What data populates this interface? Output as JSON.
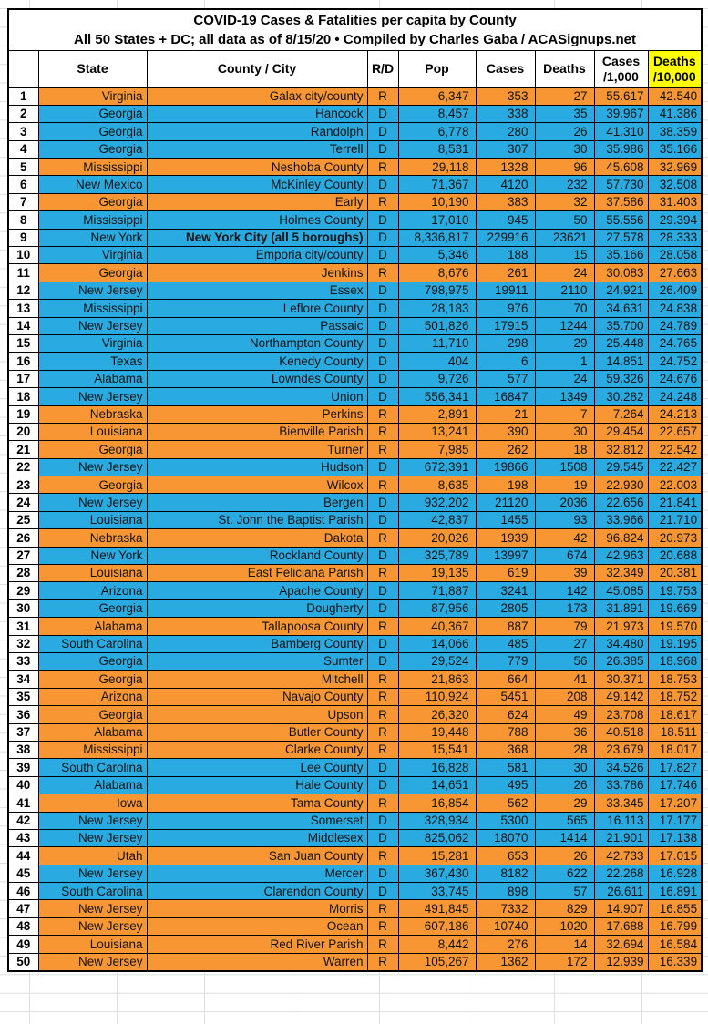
{
  "chart_data": {
    "type": "table",
    "title": "COVID-19 Cases & Fatalities per capita by County",
    "subtitle": "All 50 States + DC; all data as of 8/15/20 • Compiled by Charles Gaba / ACASignups.net",
    "columns": {
      "rank": "",
      "state": "State",
      "county": "County / City",
      "party": "R/D",
      "pop": "Pop",
      "cases": "Cases",
      "deaths": "Deaths",
      "cases_rate": "Cases\n/1,000",
      "deaths_rate": "Deaths\n/10,000"
    },
    "colors": {
      "republican_row": "#f79632",
      "democrat_row": "#29abe2",
      "deaths_header_bg": "#ffff00"
    },
    "rows": [
      {
        "rank": 1,
        "state": "Virginia",
        "county": "Galax city/county",
        "party": "R",
        "pop": "6,347",
        "cases": "353",
        "deaths": "27",
        "cases_per_1000": "55.617",
        "deaths_per_10000": "42.540",
        "bold_county": false
      },
      {
        "rank": 2,
        "state": "Georgia",
        "county": "Hancock",
        "party": "D",
        "pop": "8,457",
        "cases": "338",
        "deaths": "35",
        "cases_per_1000": "39.967",
        "deaths_per_10000": "41.386",
        "bold_county": false
      },
      {
        "rank": 3,
        "state": "Georgia",
        "county": "Randolph",
        "party": "D",
        "pop": "6,778",
        "cases": "280",
        "deaths": "26",
        "cases_per_1000": "41.310",
        "deaths_per_10000": "38.359",
        "bold_county": false
      },
      {
        "rank": 4,
        "state": "Georgia",
        "county": "Terrell",
        "party": "D",
        "pop": "8,531",
        "cases": "307",
        "deaths": "30",
        "cases_per_1000": "35.986",
        "deaths_per_10000": "35.166",
        "bold_county": false
      },
      {
        "rank": 5,
        "state": "Mississippi",
        "county": "Neshoba County",
        "party": "R",
        "pop": "29,118",
        "cases": "1328",
        "deaths": "96",
        "cases_per_1000": "45.608",
        "deaths_per_10000": "32.969",
        "bold_county": false
      },
      {
        "rank": 6,
        "state": "New Mexico",
        "county": "McKinley County",
        "party": "D",
        "pop": "71,367",
        "cases": "4120",
        "deaths": "232",
        "cases_per_1000": "57.730",
        "deaths_per_10000": "32.508",
        "bold_county": false
      },
      {
        "rank": 7,
        "state": "Georgia",
        "county": "Early",
        "party": "R",
        "pop": "10,190",
        "cases": "383",
        "deaths": "32",
        "cases_per_1000": "37.586",
        "deaths_per_10000": "31.403",
        "bold_county": false
      },
      {
        "rank": 8,
        "state": "Mississippi",
        "county": "Holmes County",
        "party": "D",
        "pop": "17,010",
        "cases": "945",
        "deaths": "50",
        "cases_per_1000": "55.556",
        "deaths_per_10000": "29.394",
        "bold_county": false
      },
      {
        "rank": 9,
        "state": "New York",
        "county": "New York City (all 5 boroughs)",
        "party": "D",
        "pop": "8,336,817",
        "cases": "229916",
        "deaths": "23621",
        "cases_per_1000": "27.578",
        "deaths_per_10000": "28.333",
        "bold_county": true
      },
      {
        "rank": 10,
        "state": "Virginia",
        "county": "Emporia city/county",
        "party": "D",
        "pop": "5,346",
        "cases": "188",
        "deaths": "15",
        "cases_per_1000": "35.166",
        "deaths_per_10000": "28.058",
        "bold_county": false
      },
      {
        "rank": 11,
        "state": "Georgia",
        "county": "Jenkins",
        "party": "R",
        "pop": "8,676",
        "cases": "261",
        "deaths": "24",
        "cases_per_1000": "30.083",
        "deaths_per_10000": "27.663",
        "bold_county": false
      },
      {
        "rank": 12,
        "state": "New Jersey",
        "county": "Essex",
        "party": "D",
        "pop": "798,975",
        "cases": "19911",
        "deaths": "2110",
        "cases_per_1000": "24.921",
        "deaths_per_10000": "26.409",
        "bold_county": false
      },
      {
        "rank": 13,
        "state": "Mississippi",
        "county": "Leflore County",
        "party": "D",
        "pop": "28,183",
        "cases": "976",
        "deaths": "70",
        "cases_per_1000": "34.631",
        "deaths_per_10000": "24.838",
        "bold_county": false
      },
      {
        "rank": 14,
        "state": "New Jersey",
        "county": "Passaic",
        "party": "D",
        "pop": "501,826",
        "cases": "17915",
        "deaths": "1244",
        "cases_per_1000": "35.700",
        "deaths_per_10000": "24.789",
        "bold_county": false
      },
      {
        "rank": 15,
        "state": "Virginia",
        "county": "Northampton County",
        "party": "D",
        "pop": "11,710",
        "cases": "298",
        "deaths": "29",
        "cases_per_1000": "25.448",
        "deaths_per_10000": "24.765",
        "bold_county": false
      },
      {
        "rank": 16,
        "state": "Texas",
        "county": "Kenedy County",
        "party": "D",
        "pop": "404",
        "cases": "6",
        "deaths": "1",
        "cases_per_1000": "14.851",
        "deaths_per_10000": "24.752",
        "bold_county": false
      },
      {
        "rank": 17,
        "state": "Alabama",
        "county": "Lowndes County",
        "party": "D",
        "pop": "9,726",
        "cases": "577",
        "deaths": "24",
        "cases_per_1000": "59.326",
        "deaths_per_10000": "24.676",
        "bold_county": false
      },
      {
        "rank": 18,
        "state": "New Jersey",
        "county": "Union",
        "party": "D",
        "pop": "556,341",
        "cases": "16847",
        "deaths": "1349",
        "cases_per_1000": "30.282",
        "deaths_per_10000": "24.248",
        "bold_county": false
      },
      {
        "rank": 19,
        "state": "Nebraska",
        "county": "Perkins",
        "party": "R",
        "pop": "2,891",
        "cases": "21",
        "deaths": "7",
        "cases_per_1000": "7.264",
        "deaths_per_10000": "24.213",
        "bold_county": false
      },
      {
        "rank": 20,
        "state": "Louisiana",
        "county": "Bienville Parish",
        "party": "R",
        "pop": "13,241",
        "cases": "390",
        "deaths": "30",
        "cases_per_1000": "29.454",
        "deaths_per_10000": "22.657",
        "bold_county": false
      },
      {
        "rank": 21,
        "state": "Georgia",
        "county": "Turner",
        "party": "R",
        "pop": "7,985",
        "cases": "262",
        "deaths": "18",
        "cases_per_1000": "32.812",
        "deaths_per_10000": "22.542",
        "bold_county": false
      },
      {
        "rank": 22,
        "state": "New Jersey",
        "county": "Hudson",
        "party": "D",
        "pop": "672,391",
        "cases": "19866",
        "deaths": "1508",
        "cases_per_1000": "29.545",
        "deaths_per_10000": "22.427",
        "bold_county": false
      },
      {
        "rank": 23,
        "state": "Georgia",
        "county": "Wilcox",
        "party": "R",
        "pop": "8,635",
        "cases": "198",
        "deaths": "19",
        "cases_per_1000": "22.930",
        "deaths_per_10000": "22.003",
        "bold_county": false
      },
      {
        "rank": 24,
        "state": "New Jersey",
        "county": "Bergen",
        "party": "D",
        "pop": "932,202",
        "cases": "21120",
        "deaths": "2036",
        "cases_per_1000": "22.656",
        "deaths_per_10000": "21.841",
        "bold_county": false
      },
      {
        "rank": 25,
        "state": "Louisiana",
        "county": "St. John the Baptist Parish",
        "party": "D",
        "pop": "42,837",
        "cases": "1455",
        "deaths": "93",
        "cases_per_1000": "33.966",
        "deaths_per_10000": "21.710",
        "bold_county": false
      },
      {
        "rank": 26,
        "state": "Nebraska",
        "county": "Dakota",
        "party": "R",
        "pop": "20,026",
        "cases": "1939",
        "deaths": "42",
        "cases_per_1000": "96.824",
        "deaths_per_10000": "20.973",
        "bold_county": false
      },
      {
        "rank": 27,
        "state": "New York",
        "county": "Rockland County",
        "party": "D",
        "pop": "325,789",
        "cases": "13997",
        "deaths": "674",
        "cases_per_1000": "42.963",
        "deaths_per_10000": "20.688",
        "bold_county": false
      },
      {
        "rank": 28,
        "state": "Louisiana",
        "county": "East Feliciana Parish",
        "party": "R",
        "pop": "19,135",
        "cases": "619",
        "deaths": "39",
        "cases_per_1000": "32.349",
        "deaths_per_10000": "20.381",
        "bold_county": false
      },
      {
        "rank": 29,
        "state": "Arizona",
        "county": "Apache County",
        "party": "D",
        "pop": "71,887",
        "cases": "3241",
        "deaths": "142",
        "cases_per_1000": "45.085",
        "deaths_per_10000": "19.753",
        "bold_county": false
      },
      {
        "rank": 30,
        "state": "Georgia",
        "county": "Dougherty",
        "party": "D",
        "pop": "87,956",
        "cases": "2805",
        "deaths": "173",
        "cases_per_1000": "31.891",
        "deaths_per_10000": "19.669",
        "bold_county": false
      },
      {
        "rank": 31,
        "state": "Alabama",
        "county": "Tallapoosa County",
        "party": "R",
        "pop": "40,367",
        "cases": "887",
        "deaths": "79",
        "cases_per_1000": "21.973",
        "deaths_per_10000": "19.570",
        "bold_county": false
      },
      {
        "rank": 32,
        "state": "South Carolina",
        "county": "Bamberg County",
        "party": "D",
        "pop": "14,066",
        "cases": "485",
        "deaths": "27",
        "cases_per_1000": "34.480",
        "deaths_per_10000": "19.195",
        "bold_county": false
      },
      {
        "rank": 33,
        "state": "Georgia",
        "county": "Sumter",
        "party": "D",
        "pop": "29,524",
        "cases": "779",
        "deaths": "56",
        "cases_per_1000": "26.385",
        "deaths_per_10000": "18.968",
        "bold_county": false
      },
      {
        "rank": 34,
        "state": "Georgia",
        "county": "Mitchell",
        "party": "R",
        "pop": "21,863",
        "cases": "664",
        "deaths": "41",
        "cases_per_1000": "30.371",
        "deaths_per_10000": "18.753",
        "bold_county": false
      },
      {
        "rank": 35,
        "state": "Arizona",
        "county": "Navajo County",
        "party": "R",
        "pop": "110,924",
        "cases": "5451",
        "deaths": "208",
        "cases_per_1000": "49.142",
        "deaths_per_10000": "18.752",
        "bold_county": false
      },
      {
        "rank": 36,
        "state": "Georgia",
        "county": "Upson",
        "party": "R",
        "pop": "26,320",
        "cases": "624",
        "deaths": "49",
        "cases_per_1000": "23.708",
        "deaths_per_10000": "18.617",
        "bold_county": false
      },
      {
        "rank": 37,
        "state": "Alabama",
        "county": "Butler County",
        "party": "R",
        "pop": "19,448",
        "cases": "788",
        "deaths": "36",
        "cases_per_1000": "40.518",
        "deaths_per_10000": "18.511",
        "bold_county": false
      },
      {
        "rank": 38,
        "state": "Mississippi",
        "county": "Clarke County",
        "party": "R",
        "pop": "15,541",
        "cases": "368",
        "deaths": "28",
        "cases_per_1000": "23.679",
        "deaths_per_10000": "18.017",
        "bold_county": false
      },
      {
        "rank": 39,
        "state": "South Carolina",
        "county": "Lee County",
        "party": "D",
        "pop": "16,828",
        "cases": "581",
        "deaths": "30",
        "cases_per_1000": "34.526",
        "deaths_per_10000": "17.827",
        "bold_county": false
      },
      {
        "rank": 40,
        "state": "Alabama",
        "county": "Hale County",
        "party": "D",
        "pop": "14,651",
        "cases": "495",
        "deaths": "26",
        "cases_per_1000": "33.786",
        "deaths_per_10000": "17.746",
        "bold_county": false
      },
      {
        "rank": 41,
        "state": "Iowa",
        "county": "Tama County",
        "party": "R",
        "pop": "16,854",
        "cases": "562",
        "deaths": "29",
        "cases_per_1000": "33.345",
        "deaths_per_10000": "17.207",
        "bold_county": false
      },
      {
        "rank": 42,
        "state": "New Jersey",
        "county": "Somerset",
        "party": "D",
        "pop": "328,934",
        "cases": "5300",
        "deaths": "565",
        "cases_per_1000": "16.113",
        "deaths_per_10000": "17.177",
        "bold_county": false
      },
      {
        "rank": 43,
        "state": "New Jersey",
        "county": "Middlesex",
        "party": "D",
        "pop": "825,062",
        "cases": "18070",
        "deaths": "1414",
        "cases_per_1000": "21.901",
        "deaths_per_10000": "17.138",
        "bold_county": false
      },
      {
        "rank": 44,
        "state": "Utah",
        "county": "San Juan County",
        "party": "R",
        "pop": "15,281",
        "cases": "653",
        "deaths": "26",
        "cases_per_1000": "42.733",
        "deaths_per_10000": "17.015",
        "bold_county": false
      },
      {
        "rank": 45,
        "state": "New Jersey",
        "county": "Mercer",
        "party": "D",
        "pop": "367,430",
        "cases": "8182",
        "deaths": "622",
        "cases_per_1000": "22.268",
        "deaths_per_10000": "16.928",
        "bold_county": false
      },
      {
        "rank": 46,
        "state": "South Carolina",
        "county": "Clarendon County",
        "party": "D",
        "pop": "33,745",
        "cases": "898",
        "deaths": "57",
        "cases_per_1000": "26.611",
        "deaths_per_10000": "16.891",
        "bold_county": false
      },
      {
        "rank": 47,
        "state": "New Jersey",
        "county": "Morris",
        "party": "R",
        "pop": "491,845",
        "cases": "7332",
        "deaths": "829",
        "cases_per_1000": "14.907",
        "deaths_per_10000": "16.855",
        "bold_county": false
      },
      {
        "rank": 48,
        "state": "New Jersey",
        "county": "Ocean",
        "party": "R",
        "pop": "607,186",
        "cases": "10740",
        "deaths": "1020",
        "cases_per_1000": "17.688",
        "deaths_per_10000": "16.799",
        "bold_county": false
      },
      {
        "rank": 49,
        "state": "Louisiana",
        "county": "Red River Parish",
        "party": "R",
        "pop": "8,442",
        "cases": "276",
        "deaths": "14",
        "cases_per_1000": "32.694",
        "deaths_per_10000": "16.584",
        "bold_county": false
      },
      {
        "rank": 50,
        "state": "New Jersey",
        "county": "Warren",
        "party": "R",
        "pop": "105,267",
        "cases": "1362",
        "deaths": "172",
        "cases_per_1000": "12.939",
        "deaths_per_10000": "16.339",
        "bold_county": false
      }
    ]
  }
}
